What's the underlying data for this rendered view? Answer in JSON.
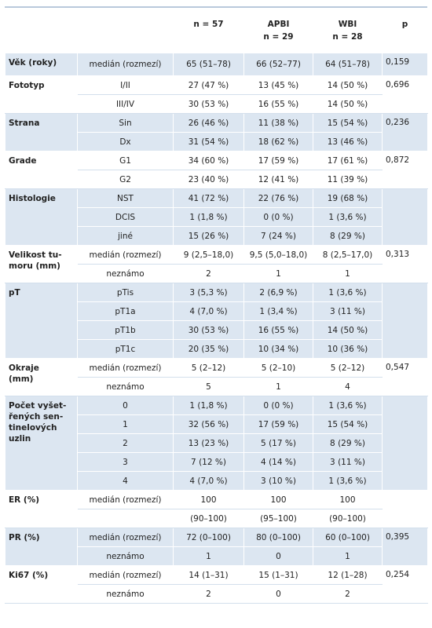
{
  "header": {
    "columns": [
      {
        "title": "n = 57"
      },
      {
        "title": "APBI",
        "n": "n = 29"
      },
      {
        "title": "WBI",
        "n": "n = 28"
      },
      {
        "title": "p"
      }
    ]
  },
  "groups": [
    {
      "label": [
        "Věk (roky)"
      ],
      "p": "0,159",
      "rows": [
        [
          "medián (rozmezí)",
          "65 (51–78)",
          "66 (52–77)",
          "64 (51–78)"
        ]
      ]
    },
    {
      "label": [
        "Fototyp"
      ],
      "p": "0,696",
      "rows": [
        [
          "I/II",
          "27 (47 %)",
          "13 (45 %)",
          "14 (50 %)"
        ],
        [
          "III/IV",
          "30 (53 %)",
          "16 (55 %)",
          "14 (50 %)"
        ]
      ]
    },
    {
      "label": [
        "Strana"
      ],
      "p": "0,236",
      "rows": [
        [
          "Sin",
          "26 (46 %)",
          "11 (38 %)",
          "15 (54 %)"
        ],
        [
          "Dx",
          "31 (54 %)",
          "18 (62 %)",
          "13 (46 %)"
        ]
      ]
    },
    {
      "label": [
        "Grade"
      ],
      "p": "0,872",
      "rows": [
        [
          "G1",
          "34 (60 %)",
          "17 (59 %)",
          "17 (61 %)"
        ],
        [
          "G2",
          "23 (40 %)",
          "12 (41 %)",
          "11 (39 %)"
        ]
      ]
    },
    {
      "label": [
        "Histologie"
      ],
      "rows": [
        [
          "NST",
          "41 (72 %)",
          "22 (76 %)",
          "19 (68 %)"
        ],
        [
          "DCIS",
          "1 (1,8 %)",
          "0 (0 %)",
          "1 (3,6 %)"
        ],
        [
          "jiné",
          "15 (26 %)",
          "7 (24 %)",
          "8 (29 %)"
        ]
      ]
    },
    {
      "label": [
        "Velikost tu-",
        "moru (mm)"
      ],
      "p": "0,313",
      "rows": [
        [
          "medián (rozmezí)",
          "9 (2,5–18,0)",
          "9,5 (5,0–18,0)",
          "8 (2,5–17,0)"
        ],
        [
          "neznámo",
          "2",
          "1",
          "1"
        ]
      ]
    },
    {
      "label": [
        "pT"
      ],
      "rows": [
        [
          "pTis",
          "3 (5,3 %)",
          "2 (6,9 %)",
          "1 (3,6 %)"
        ],
        [
          "pT1a",
          "4 (7,0 %)",
          "1 (3,4 %)",
          "3 (11 %)"
        ],
        [
          "pT1b",
          "30 (53 %)",
          "16 (55 %)",
          "14 (50 %)"
        ],
        [
          "pT1c",
          "20 (35 %)",
          "10 (34 %)",
          "10 (36 %)"
        ]
      ]
    },
    {
      "label": [
        "Okraje",
        "(mm)"
      ],
      "p": "0,547",
      "rows": [
        [
          "medián (rozmezí)",
          "5 (2–12)",
          "5 (2–10)",
          "5  (2–12)"
        ],
        [
          "neznámo",
          "5",
          "1",
          "4"
        ]
      ]
    },
    {
      "label": [
        "Počet vyšet-",
        "řených sen-",
        "tinelových",
        "uzlin"
      ],
      "rows": [
        [
          "0",
          "1 (1,8 %)",
          "0 (0 %)",
          "1 (3,6 %)"
        ],
        [
          "1",
          "32 (56 %)",
          "17 (59 %)",
          "15 (54 %)"
        ],
        [
          "2",
          "13 (23 %)",
          "5 (17 %)",
          "8 (29 %)"
        ],
        [
          "3",
          "7 (12 %)",
          "4 (14 %)",
          "3 (11 %)"
        ],
        [
          "4",
          "4 (7,0 %)",
          "3 (10 %)",
          "1 (3,6 %)"
        ]
      ]
    },
    {
      "label": [
        "ER (%)"
      ],
      "rows": [
        [
          "medián (rozmezí)",
          "100",
          "100",
          "100"
        ],
        [
          null,
          "(90–100)",
          "(95–100)",
          "(90–100)"
        ]
      ]
    },
    {
      "label": [
        "PR (%)"
      ],
      "p": "0,395",
      "rows": [
        [
          "medián (rozmezí)",
          "72 (0–100)",
          "80 (0–100)",
          "60 (0–100)"
        ],
        [
          "neznámo",
          "1",
          "0",
          "1"
        ]
      ]
    },
    {
      "label": [
        "Ki67 (%)"
      ],
      "p": "0,254",
      "rows": [
        [
          "medián (rozmezí)",
          "14 (1–31)",
          "15 (1–31)",
          "12 (1–28)"
        ],
        [
          "neznámo",
          "2",
          "0",
          "2"
        ]
      ]
    }
  ]
}
